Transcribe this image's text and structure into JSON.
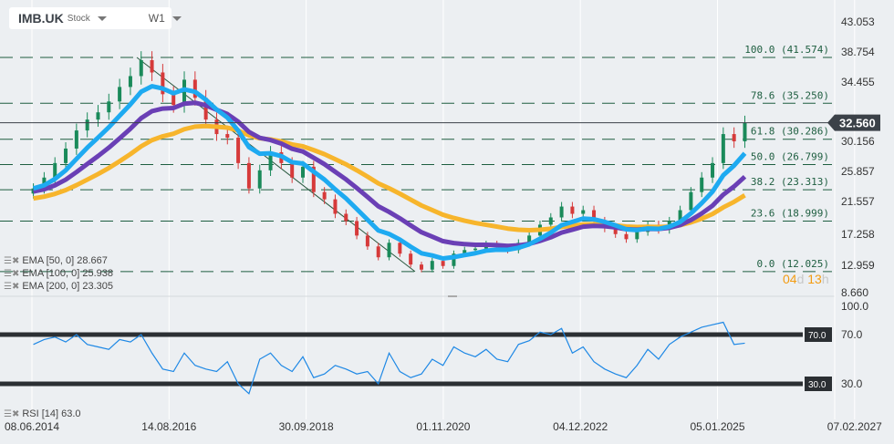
{
  "toolbar": {
    "symbol": "IMB.UK",
    "kind": "Stock",
    "timeframe": "W1"
  },
  "countdown": {
    "days": "04",
    "days_unit": "d",
    "hours": "13",
    "hours_unit": "h"
  },
  "indicators": [
    {
      "label": "EMA [50, 0] 28.667",
      "color": "#1eaaf1"
    },
    {
      "label": "EMA [100, 0] 25.938",
      "color": "#6a3fb5"
    },
    {
      "label": "EMA [200, 0] 23.305",
      "color": "#f7b52c"
    }
  ],
  "rsi_label": "RSI [14] 63.0",
  "chart_data": {
    "type": "candlestick",
    "price_ticks": [
      "43.053",
      "38.754",
      "34.455",
      "30.156",
      "25.857",
      "21.557",
      "17.258",
      "12.959",
      "8.660"
    ],
    "current_price": "32.560",
    "time_labels": [
      "08.06.2014",
      "14.08.2016",
      "30.09.2018",
      "01.11.2020",
      "04.12.2022",
      "05.01.2025",
      "07.02.2027"
    ],
    "fib_levels": [
      {
        "label": "100.0 (41.574)",
        "value": 41.574
      },
      {
        "label": "78.6 (35.250)",
        "value": 35.25
      },
      {
        "label": "61.8 (30.286)",
        "value": 30.286
      },
      {
        "label": "50.0 (26.799)",
        "value": 26.799
      },
      {
        "label": "38.2 (23.313)",
        "value": 23.313
      },
      {
        "label": "23.6 (18.999)",
        "value": 18.999
      },
      {
        "label": "0.0 (12.025)",
        "value": 12.025
      }
    ],
    "dates": [
      "2014-06",
      "2014-08",
      "2014-10",
      "2014-12",
      "2015-02",
      "2015-04",
      "2015-06",
      "2015-08",
      "2015-10",
      "2015-12",
      "2016-02",
      "2016-04",
      "2016-06",
      "2016-08",
      "2016-10",
      "2016-12",
      "2017-02",
      "2017-04",
      "2017-06",
      "2017-08",
      "2017-10",
      "2017-12",
      "2018-02",
      "2018-04",
      "2018-06",
      "2018-08",
      "2018-10",
      "2018-12",
      "2019-02",
      "2019-04",
      "2019-06",
      "2019-08",
      "2019-10",
      "2019-12",
      "2020-02",
      "2020-04",
      "2020-06",
      "2020-08",
      "2020-10",
      "2020-12",
      "2021-02",
      "2021-04",
      "2021-06",
      "2021-08",
      "2021-10",
      "2021-12",
      "2022-02",
      "2022-04",
      "2022-06",
      "2022-08",
      "2022-10",
      "2022-12",
      "2023-02",
      "2023-04",
      "2023-06",
      "2023-08",
      "2023-10",
      "2023-12",
      "2024-02",
      "2024-04",
      "2024-06",
      "2024-08",
      "2024-10",
      "2024-12",
      "2025-02",
      "2025-04",
      "2025-06"
    ],
    "close": [
      23.5,
      25,
      27,
      29,
      31.5,
      33,
      34,
      35.5,
      37.5,
      39,
      41.2,
      39.5,
      36.5,
      35,
      38.5,
      36,
      33,
      31,
      30.5,
      27,
      23.5,
      26,
      28.5,
      27,
      25,
      26.5,
      23,
      22,
      20,
      19,
      17,
      15.5,
      14,
      16,
      14.5,
      13,
      12.3,
      13.5,
      12.8,
      14.5,
      15,
      15.2,
      15.8,
      15.4,
      15,
      16,
      17,
      18.5,
      19.5,
      21,
      20,
      20.5,
      19,
      18,
      17.2,
      16.5,
      17.5,
      18.5,
      17.8,
      19,
      20.5,
      23,
      25,
      27,
      31,
      30,
      32.56
    ],
    "rsi": [
      62,
      66,
      68,
      64,
      70,
      62,
      60,
      58,
      66,
      64,
      70,
      55,
      42,
      40,
      55,
      45,
      42,
      40,
      48,
      30,
      22,
      50,
      55,
      45,
      40,
      52,
      35,
      38,
      45,
      42,
      38,
      40,
      30,
      55,
      40,
      35,
      38,
      50,
      45,
      60,
      55,
      52,
      58,
      50,
      48,
      62,
      65,
      72,
      70,
      75,
      55,
      60,
      48,
      42,
      38,
      35,
      45,
      58,
      50,
      62,
      68,
      72,
      76,
      78,
      80,
      62,
      63
    ],
    "rsi_levels": [
      70,
      30
    ],
    "rsi_ticks": [
      "100.0",
      "70.0",
      "30.0"
    ],
    "colors": {
      "up": "#1a8a5a",
      "down": "#d63a3a",
      "fib": "#1e5e40",
      "rsi": "#1e88e5",
      "price_badge": "#3b4148"
    }
  }
}
